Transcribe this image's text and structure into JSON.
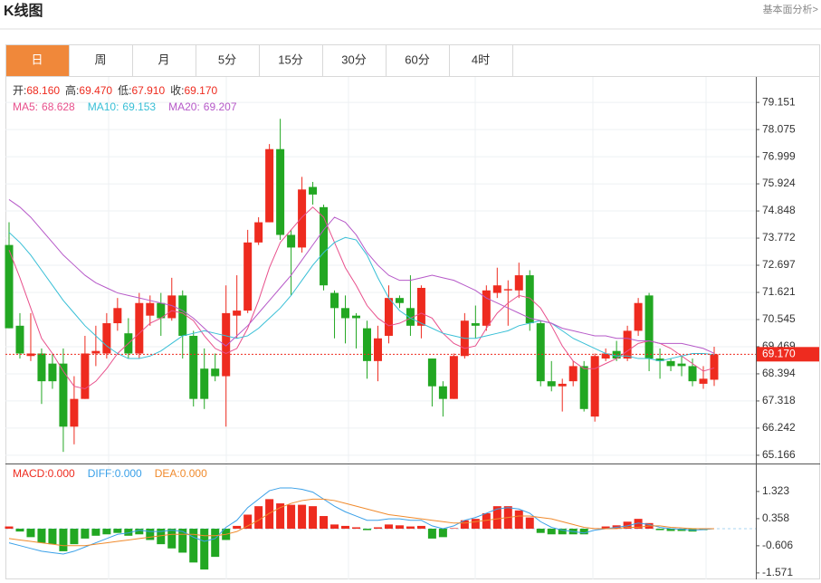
{
  "header": {
    "title": "K线图",
    "link": "基本面分析>"
  },
  "tabs": [
    "日",
    "周",
    "月",
    "5分",
    "15分",
    "30分",
    "60分",
    "4时"
  ],
  "active_tab": 0,
  "chart_data": [
    {
      "type": "candlestick",
      "info": [
        {
          "label": "开:",
          "value": "68.160"
        },
        {
          "label": "高:",
          "value": "69.470"
        },
        {
          "label": "低:",
          "value": "67.910"
        },
        {
          "label": "收:",
          "value": "69.170"
        }
      ],
      "up_color": "#ee2b1f",
      "down_color": "#22a722",
      "open": [
        73.5,
        70.3,
        69.1,
        69.2,
        68.8,
        68.8,
        66.3,
        67.4,
        69.2,
        69.2,
        70.4,
        70.0,
        69.2,
        70.7,
        71.2,
        70.6,
        71.5,
        69.9,
        68.6,
        68.6,
        68.3,
        70.7,
        70.9,
        73.6,
        74.4,
        77.3,
        73.9,
        73.4,
        75.8,
        75.0,
        71.6,
        71.0,
        70.7,
        70.2,
        68.9,
        69.9,
        71.4,
        71.0,
        70.3,
        69.0,
        67.9,
        67.4,
        69.1,
        70.4,
        70.3,
        71.6,
        71.7,
        71.7,
        72.3,
        70.4,
        68.1,
        67.9,
        68.1,
        68.7,
        66.7,
        69.0,
        69.3,
        69.0,
        70.1,
        71.5,
        69.0,
        68.9,
        68.8,
        68.7,
        68.0,
        68.16
      ],
      "high": [
        74.4,
        70.8,
        70.8,
        69.4,
        69.2,
        69.4,
        68.3,
        69.9,
        70.3,
        70.8,
        71.4,
        70.6,
        71.6,
        71.5,
        71.6,
        72.2,
        71.7,
        70.1,
        69.4,
        69.2,
        71.9,
        72.3,
        74.1,
        74.6,
        77.5,
        78.5,
        74.1,
        76.2,
        76.0,
        75.1,
        71.7,
        71.5,
        70.8,
        70.5,
        70.3,
        71.9,
        71.5,
        72.3,
        71.9,
        69.0,
        68.1,
        69.2,
        70.8,
        71.1,
        71.9,
        72.6,
        72.1,
        72.8,
        72.5,
        70.5,
        68.9,
        68.2,
        68.9,
        68.9,
        69.2,
        69.4,
        69.7,
        70.3,
        71.4,
        71.6,
        69.4,
        69.0,
        69.1,
        69.0,
        68.7,
        69.47
      ],
      "low": [
        70.2,
        69.0,
        68.9,
        67.2,
        67.8,
        65.3,
        65.6,
        67.4,
        68.7,
        69.0,
        70.1,
        69.0,
        69.0,
        70.3,
        69.9,
        70.5,
        69.0,
        67.1,
        67.0,
        68.1,
        66.3,
        69.8,
        70.8,
        73.5,
        74.4,
        73.7,
        71.5,
        73.2,
        75.1,
        71.7,
        69.8,
        69.6,
        69.4,
        68.2,
        68.1,
        69.6,
        71.0,
        69.9,
        69.8,
        67.1,
        66.7,
        67.4,
        69.0,
        69.8,
        70.1,
        71.4,
        70.3,
        71.4,
        70.1,
        67.9,
        67.7,
        66.9,
        67.9,
        66.9,
        66.5,
        68.9,
        68.9,
        68.9,
        69.9,
        68.5,
        68.2,
        68.5,
        68.3,
        67.9,
        67.8,
        67.91
      ],
      "close": [
        70.2,
        69.2,
        69.2,
        68.1,
        68.1,
        66.3,
        67.4,
        69.2,
        69.3,
        70.4,
        71.0,
        69.2,
        71.2,
        71.2,
        70.6,
        71.5,
        69.9,
        67.4,
        67.4,
        68.3,
        70.8,
        70.9,
        73.6,
        74.4,
        77.3,
        73.9,
        73.4,
        75.7,
        75.5,
        71.9,
        71.0,
        70.6,
        70.6,
        68.9,
        69.8,
        71.4,
        71.2,
        70.3,
        71.8,
        67.9,
        67.4,
        69.1,
        70.5,
        70.3,
        71.7,
        71.9,
        71.75,
        72.3,
        70.4,
        68.1,
        67.9,
        68.0,
        68.7,
        67.0,
        69.1,
        69.2,
        69.0,
        70.1,
        71.2,
        69.0,
        68.9,
        68.7,
        68.7,
        68.1,
        68.2,
        69.17
      ],
      "series": [
        {
          "name": "MA5:",
          "color": "#e8508c",
          "values": [
            73.3,
            72.2,
            71.0,
            69.8,
            69.2,
            68.5,
            67.9,
            67.8,
            68.1,
            68.6,
            69.2,
            69.6,
            70.0,
            70.4,
            70.6,
            70.9,
            70.8,
            70.5,
            69.9,
            69.4,
            69.2,
            69.4,
            70.2,
            71.3,
            72.6,
            73.6,
            74.1,
            74.6,
            75.0,
            74.6,
            73.6,
            72.6,
            71.9,
            71.1,
            70.6,
            70.3,
            70.4,
            70.6,
            70.8,
            70.6,
            70.0,
            69.6,
            69.4,
            69.5,
            70.2,
            70.8,
            71.2,
            71.5,
            71.4,
            71.0,
            70.3,
            69.5,
            68.9,
            68.6,
            68.6,
            68.8,
            69.0,
            69.3,
            69.6,
            69.7,
            69.6,
            69.4,
            69.1,
            68.8,
            68.5,
            68.628
          ]
        },
        {
          "name": "MA10:",
          "color": "#38bfd6",
          "values": [
            74.0,
            73.6,
            73.1,
            72.5,
            71.9,
            71.3,
            70.8,
            70.3,
            69.9,
            69.5,
            69.2,
            69.0,
            69.0,
            69.1,
            69.3,
            69.6,
            69.9,
            70.0,
            70.1,
            70.0,
            69.9,
            69.8,
            69.9,
            70.2,
            70.6,
            71.0,
            71.5,
            72.1,
            72.7,
            73.2,
            73.6,
            73.8,
            73.7,
            73.1,
            72.2,
            71.4,
            70.9,
            70.6,
            70.4,
            70.2,
            70.0,
            69.9,
            69.8,
            69.8,
            69.9,
            70.0,
            70.1,
            70.3,
            70.4,
            70.5,
            70.4,
            70.1,
            69.8,
            69.6,
            69.4,
            69.2,
            69.1,
            69.1,
            69.0,
            69.0,
            68.9,
            69.0,
            69.1,
            69.2,
            69.2,
            69.153
          ]
        },
        {
          "name": "MA20:",
          "color": "#b659c8",
          "values": [
            75.3,
            75.0,
            74.6,
            74.1,
            73.6,
            73.1,
            72.7,
            72.3,
            72.0,
            71.8,
            71.6,
            71.5,
            71.4,
            71.3,
            71.2,
            71.1,
            70.9,
            70.6,
            70.2,
            69.8,
            69.5,
            69.9,
            70.3,
            70.8,
            71.3,
            71.8,
            72.3,
            72.9,
            73.5,
            74.1,
            74.6,
            74.4,
            73.9,
            73.2,
            72.7,
            72.3,
            72.1,
            72.1,
            72.2,
            72.3,
            72.2,
            72.1,
            71.9,
            71.7,
            71.4,
            71.2,
            71.0,
            70.8,
            70.6,
            70.5,
            70.4,
            70.2,
            70.1,
            70.0,
            69.9,
            69.9,
            69.8,
            69.8,
            69.7,
            69.7,
            69.6,
            69.6,
            69.6,
            69.5,
            69.4,
            69.207
          ]
        }
      ],
      "last_price": {
        "value": 69.17,
        "label": "69.170"
      },
      "ylim": [
        64.84,
        80.16
      ],
      "yticks": [
        79.151,
        78.075,
        76.999,
        75.924,
        74.848,
        73.772,
        72.697,
        71.621,
        70.545,
        69.469,
        68.394,
        67.318,
        66.242,
        65.166
      ],
      "grid": true
    },
    {
      "type": "macd",
      "histogram": {
        "name": "MACD:",
        "value_label": "0.000",
        "up_color": "#ee2b1f",
        "down_color": "#22a722",
        "values": [
          0.08,
          -0.1,
          -0.3,
          -0.5,
          -0.55,
          -0.8,
          -0.55,
          -0.35,
          -0.25,
          -0.2,
          -0.15,
          -0.25,
          -0.2,
          -0.4,
          -0.55,
          -0.7,
          -0.85,
          -1.2,
          -1.45,
          -1.0,
          -0.4,
          0.1,
          0.5,
          0.8,
          1.05,
          0.9,
          0.85,
          0.85,
          0.8,
          0.45,
          0.15,
          0.1,
          0.05,
          -0.05,
          0.05,
          0.15,
          0.12,
          0.08,
          0.1,
          -0.35,
          -0.3,
          0.02,
          0.3,
          0.35,
          0.55,
          0.8,
          0.8,
          0.65,
          0.4,
          -0.15,
          -0.2,
          -0.2,
          -0.2,
          -0.2,
          0.02,
          0.08,
          0.12,
          0.25,
          0.35,
          0.2,
          -0.05,
          -0.08,
          -0.08,
          -0.1,
          -0.05,
          0.0
        ]
      },
      "series": [
        {
          "name": "DIFF:",
          "value_label": "0.000",
          "color": "#3aa0e8",
          "values": [
            -0.5,
            -0.6,
            -0.7,
            -0.8,
            -0.85,
            -0.9,
            -0.8,
            -0.65,
            -0.5,
            -0.35,
            -0.2,
            -0.15,
            -0.05,
            -0.1,
            -0.1,
            -0.05,
            -0.1,
            -0.3,
            -0.45,
            -0.35,
            0.05,
            0.3,
            0.75,
            1.05,
            1.35,
            1.45,
            1.45,
            1.4,
            1.3,
            1.05,
            0.8,
            0.6,
            0.45,
            0.3,
            0.3,
            0.35,
            0.35,
            0.3,
            0.3,
            0.1,
            0.0,
            0.1,
            0.3,
            0.4,
            0.55,
            0.7,
            0.75,
            0.7,
            0.55,
            0.25,
            0.05,
            -0.05,
            -0.1,
            -0.15,
            -0.05,
            0.0,
            0.05,
            0.1,
            0.2,
            0.15,
            0.05,
            0.0,
            -0.02,
            -0.05,
            -0.03,
            0.0
          ]
        },
        {
          "name": "DEA:",
          "value_label": "0.000",
          "color": "#f08a2c",
          "values": [
            -0.35,
            -0.4,
            -0.45,
            -0.5,
            -0.55,
            -0.6,
            -0.6,
            -0.6,
            -0.55,
            -0.5,
            -0.45,
            -0.4,
            -0.35,
            -0.3,
            -0.25,
            -0.2,
            -0.2,
            -0.2,
            -0.25,
            -0.25,
            -0.2,
            -0.1,
            0.1,
            0.3,
            0.55,
            0.75,
            0.9,
            1.0,
            1.05,
            1.05,
            1.0,
            0.9,
            0.8,
            0.7,
            0.6,
            0.5,
            0.45,
            0.4,
            0.35,
            0.3,
            0.25,
            0.2,
            0.2,
            0.25,
            0.3,
            0.35,
            0.4,
            0.45,
            0.45,
            0.4,
            0.35,
            0.25,
            0.15,
            0.05,
            0.0,
            0.0,
            0.0,
            0.05,
            0.05,
            0.1,
            0.1,
            0.05,
            0.03,
            0.0,
            0.0,
            0.0
          ]
        }
      ],
      "ylim": [
        -1.8,
        2.22
      ],
      "yticks": [
        1.323,
        0.358,
        -0.606,
        -1.571
      ]
    }
  ]
}
